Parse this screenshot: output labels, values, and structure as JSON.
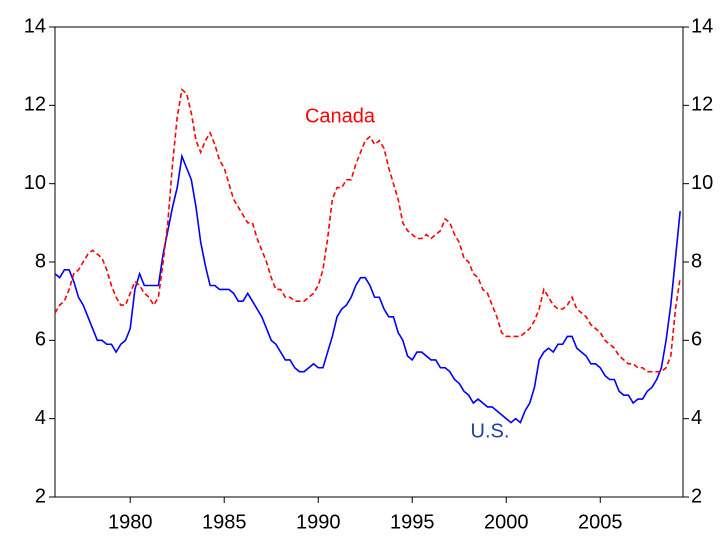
{
  "chart_data": {
    "type": "line",
    "annotations": [
      {
        "text": "Canada"
      },
      {
        "text": "U.S."
      }
    ],
    "x": [
      1976,
      1976.25,
      1976.5,
      1976.75,
      1977,
      1977.25,
      1977.5,
      1977.75,
      1978,
      1978.25,
      1978.5,
      1978.75,
      1979,
      1979.25,
      1979.5,
      1979.75,
      1980,
      1980.25,
      1980.5,
      1980.75,
      1981,
      1981.25,
      1981.5,
      1981.75,
      1982,
      1982.25,
      1982.5,
      1982.75,
      1983,
      1983.25,
      1983.5,
      1983.75,
      1984,
      1984.25,
      1984.5,
      1984.75,
      1985,
      1985.25,
      1985.5,
      1985.75,
      1986,
      1986.25,
      1986.5,
      1986.75,
      1987,
      1987.25,
      1987.5,
      1987.75,
      1988,
      1988.25,
      1988.5,
      1988.75,
      1989,
      1989.25,
      1989.5,
      1989.75,
      1990,
      1990.25,
      1990.5,
      1990.75,
      1991,
      1991.25,
      1991.5,
      1991.75,
      1992,
      1992.25,
      1992.5,
      1992.75,
      1993,
      1993.25,
      1993.5,
      1993.75,
      1994,
      1994.25,
      1994.5,
      1994.75,
      1995,
      1995.25,
      1995.5,
      1995.75,
      1996,
      1996.25,
      1996.5,
      1996.75,
      1997,
      1997.25,
      1997.5,
      1997.75,
      1998,
      1998.25,
      1998.5,
      1998.75,
      1999,
      1999.25,
      1999.5,
      1999.75,
      2000,
      2000.25,
      2000.5,
      2000.75,
      2001,
      2001.25,
      2001.5,
      2001.75,
      2002,
      2002.25,
      2002.5,
      2002.75,
      2003,
      2003.25,
      2003.5,
      2003.75,
      2004,
      2004.25,
      2004.5,
      2004.75,
      2005,
      2005.25,
      2005.5,
      2005.75,
      2006,
      2006.25,
      2006.5,
      2006.75,
      2007,
      2007.25,
      2007.5,
      2007.75,
      2008,
      2008.25,
      2008.5,
      2008.75,
      2009,
      2009.25
    ],
    "series": [
      {
        "name": "U.S.",
        "color": "#0000ff",
        "dashed": false,
        "values": [
          7.7,
          7.6,
          7.8,
          7.8,
          7.5,
          7.1,
          6.9,
          6.6,
          6.3,
          6.0,
          6.0,
          5.9,
          5.9,
          5.7,
          5.9,
          6.0,
          6.3,
          7.3,
          7.7,
          7.4,
          7.4,
          7.4,
          7.4,
          8.2,
          8.8,
          9.4,
          9.9,
          10.7,
          10.4,
          10.1,
          9.4,
          8.5,
          7.9,
          7.4,
          7.4,
          7.3,
          7.3,
          7.3,
          7.2,
          7.0,
          7.0,
          7.2,
          7.0,
          6.8,
          6.6,
          6.3,
          6.0,
          5.9,
          5.7,
          5.5,
          5.5,
          5.3,
          5.2,
          5.2,
          5.3,
          5.4,
          5.3,
          5.3,
          5.7,
          6.1,
          6.6,
          6.8,
          6.9,
          7.1,
          7.4,
          7.6,
          7.6,
          7.4,
          7.1,
          7.1,
          6.8,
          6.6,
          6.6,
          6.2,
          6.0,
          5.6,
          5.5,
          5.7,
          5.7,
          5.6,
          5.5,
          5.5,
          5.3,
          5.3,
          5.2,
          5.0,
          4.9,
          4.7,
          4.6,
          4.4,
          4.5,
          4.4,
          4.3,
          4.3,
          4.2,
          4.1,
          4.0,
          3.9,
          4.0,
          3.9,
          4.2,
          4.4,
          4.8,
          5.5,
          5.7,
          5.8,
          5.7,
          5.9,
          5.9,
          6.1,
          6.1,
          5.8,
          5.7,
          5.6,
          5.4,
          5.4,
          5.3,
          5.1,
          5.0,
          5.0,
          4.7,
          4.6,
          4.6,
          4.4,
          4.5,
          4.5,
          4.7,
          4.8,
          5.0,
          5.3,
          6.0,
          6.9,
          8.1,
          9.3
        ]
      },
      {
        "name": "Canada",
        "color": "#ff0000",
        "dashed": true,
        "values": [
          6.7,
          6.9,
          7.0,
          7.3,
          7.7,
          7.8,
          8.0,
          8.2,
          8.3,
          8.2,
          8.1,
          7.8,
          7.4,
          7.1,
          6.9,
          6.9,
          7.2,
          7.5,
          7.4,
          7.2,
          7.1,
          6.9,
          7.1,
          8.0,
          9.0,
          10.5,
          11.7,
          12.4,
          12.3,
          11.8,
          11.1,
          10.8,
          11.1,
          11.3,
          11.0,
          10.6,
          10.4,
          10.0,
          9.6,
          9.4,
          9.2,
          9.0,
          9.0,
          8.6,
          8.3,
          8.0,
          7.6,
          7.3,
          7.3,
          7.1,
          7.1,
          7.0,
          7.0,
          7.0,
          7.1,
          7.2,
          7.4,
          7.8,
          8.6,
          9.6,
          9.9,
          9.9,
          10.1,
          10.1,
          10.5,
          10.8,
          11.1,
          11.2,
          11.0,
          11.1,
          10.9,
          10.4,
          10.0,
          9.6,
          9.0,
          8.8,
          8.7,
          8.6,
          8.6,
          8.7,
          8.6,
          8.7,
          8.8,
          9.1,
          9.0,
          8.7,
          8.5,
          8.1,
          8.0,
          7.7,
          7.6,
          7.3,
          7.2,
          6.9,
          6.6,
          6.2,
          6.1,
          6.1,
          6.1,
          6.1,
          6.2,
          6.3,
          6.5,
          6.8,
          7.3,
          7.1,
          6.9,
          6.8,
          6.8,
          6.9,
          7.1,
          6.8,
          6.7,
          6.6,
          6.4,
          6.3,
          6.2,
          6.0,
          5.9,
          5.8,
          5.6,
          5.5,
          5.4,
          5.4,
          5.3,
          5.3,
          5.2,
          5.2,
          5.2,
          5.2,
          5.3,
          5.6,
          6.8,
          7.6
        ]
      }
    ],
    "xlim": [
      1976,
      2009.4
    ],
    "xticks": [
      1980,
      1985,
      1990,
      1995,
      2000,
      2005
    ],
    "ylim": [
      2,
      14
    ],
    "yticks": [
      2,
      4,
      6,
      8,
      10,
      12,
      14
    ],
    "y2lim": [
      2,
      14
    ],
    "y2ticks": [
      2,
      4,
      6,
      8,
      10,
      12,
      14
    ],
    "grid": false
  }
}
